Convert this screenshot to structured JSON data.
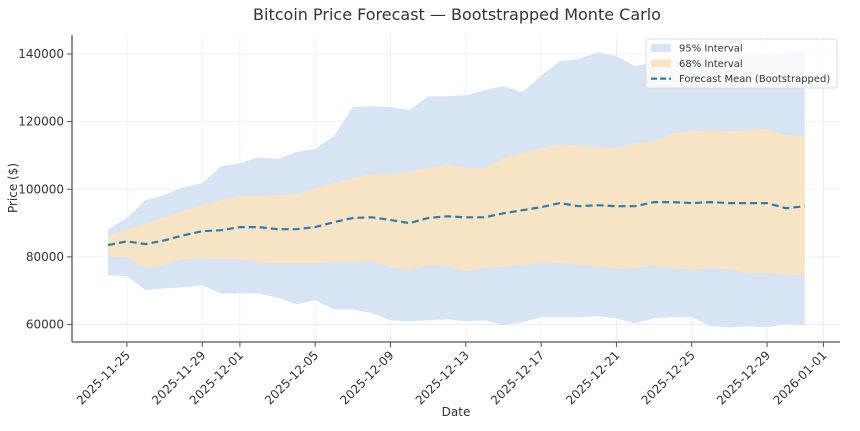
{
  "chart_data": {
    "type": "area",
    "title": "Bitcoin Price Forecast — Bootstrapped Monte Carlo",
    "xlabel": "Date",
    "ylabel": "Price ($)",
    "xlim": [
      "2025-11-22T02:00:00",
      "2026-01-01T21:00:00"
    ],
    "ylim": [
      54850,
      145600
    ],
    "x_ticks": [
      "2025-11-25",
      "2025-11-29",
      "2025-12-01",
      "2025-12-05",
      "2025-12-09",
      "2025-12-13",
      "2025-12-17",
      "2025-12-21",
      "2025-12-25",
      "2025-12-29",
      "2026-01-01"
    ],
    "y_ticks": [
      60000,
      80000,
      100000,
      120000,
      140000
    ],
    "grid": true,
    "legend_position": "top-right",
    "x": [
      "2025-11-24",
      "2025-11-25",
      "2025-11-26",
      "2025-11-27",
      "2025-11-28",
      "2025-11-29",
      "2025-11-30",
      "2025-12-01",
      "2025-12-02",
      "2025-12-03",
      "2025-12-04",
      "2025-12-05",
      "2025-12-06",
      "2025-12-07",
      "2025-12-08",
      "2025-12-09",
      "2025-12-10",
      "2025-12-11",
      "2025-12-12",
      "2025-12-13",
      "2025-12-14",
      "2025-12-15",
      "2025-12-16",
      "2025-12-17",
      "2025-12-18",
      "2025-12-19",
      "2025-12-20",
      "2025-12-21",
      "2025-12-22",
      "2025-12-23",
      "2025-12-24",
      "2025-12-25",
      "2025-12-26",
      "2025-12-27",
      "2025-12-28",
      "2025-12-29",
      "2025-12-30",
      "2025-12-31"
    ],
    "series": [
      {
        "name": "95% Interval",
        "color": "#d7e4f3",
        "lower": [
          74600,
          74300,
          70100,
          70700,
          71000,
          71600,
          69200,
          69200,
          69200,
          68000,
          66000,
          67200,
          64500,
          64500,
          63300,
          61300,
          61000,
          61300,
          61600,
          61000,
          61300,
          59800,
          60700,
          62200,
          62200,
          62200,
          62500,
          61900,
          60400,
          61900,
          62200,
          62200,
          59500,
          59200,
          59500,
          59200,
          60100,
          59800
        ],
        "upper": [
          88200,
          91500,
          96800,
          98300,
          100600,
          101800,
          106800,
          107700,
          109500,
          108900,
          111000,
          111900,
          115700,
          124300,
          124600,
          124300,
          123400,
          127500,
          127500,
          127800,
          129300,
          130500,
          128700,
          133500,
          137900,
          138500,
          140500,
          139400,
          136400,
          137500,
          138000,
          138500,
          139000,
          139500,
          140000,
          140300,
          140500,
          140800
        ]
      },
      {
        "name": "68% Interval",
        "color": "#f9e5c6",
        "lower": [
          80000,
          80000,
          76700,
          77800,
          79300,
          79600,
          79300,
          79300,
          78400,
          78100,
          78100,
          78100,
          78400,
          78400,
          78700,
          77000,
          76100,
          77500,
          77200,
          75800,
          76700,
          77200,
          77500,
          78400,
          78100,
          77800,
          77200,
          76400,
          76700,
          77500,
          76700,
          76100,
          76700,
          76400,
          75200,
          75200,
          74900,
          74300
        ],
        "upper": [
          86100,
          88200,
          89700,
          91700,
          93500,
          95300,
          96800,
          98000,
          98000,
          98300,
          98600,
          100400,
          101800,
          103300,
          104500,
          104500,
          105100,
          106200,
          107400,
          106200,
          106200,
          109200,
          110700,
          112200,
          113300,
          113000,
          112400,
          112200,
          113600,
          114200,
          116600,
          117100,
          117500,
          117100,
          117500,
          117800,
          116000,
          115700
        ]
      },
      {
        "name": "Forecast Mean (Bootstrapped)",
        "color": "#2f7bb0",
        "values": [
          83500,
          84600,
          83800,
          84900,
          86400,
          87600,
          87900,
          88800,
          88800,
          88200,
          88200,
          88800,
          90300,
          91500,
          91700,
          90900,
          90000,
          91500,
          92000,
          91700,
          91700,
          92900,
          93800,
          94700,
          95900,
          95000,
          95300,
          95000,
          95000,
          96200,
          96200,
          95900,
          96200,
          95900,
          95900,
          95900,
          94400,
          95000
        ]
      }
    ]
  }
}
